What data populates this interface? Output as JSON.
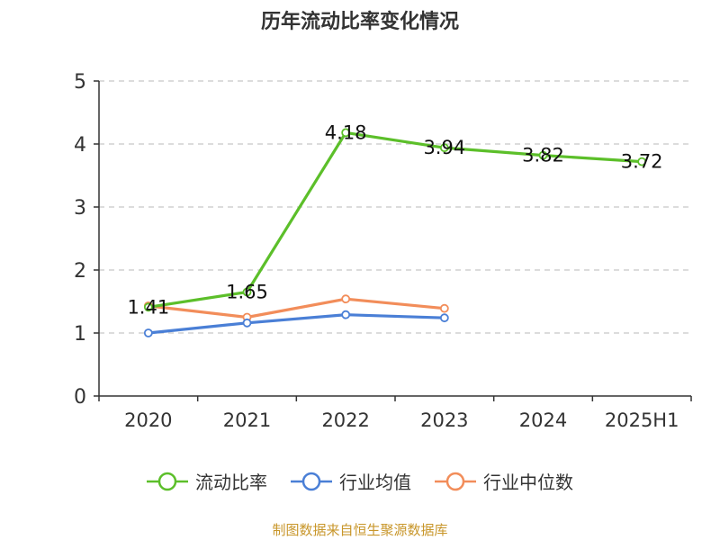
{
  "chart_data": {
    "type": "line",
    "title": "历年流动比率变化情况",
    "categories": [
      "2020",
      "2021",
      "2022",
      "2023",
      "2024",
      "2025H1"
    ],
    "ylim": [
      0,
      5
    ],
    "yticks": [
      "0",
      "1",
      "2",
      "3",
      "4",
      "5"
    ],
    "grid": true,
    "legend_position": "bottom",
    "series": [
      {
        "name": "流动比率",
        "color": "#5cbf2a",
        "values": [
          1.41,
          1.65,
          4.18,
          3.94,
          3.82,
          3.72
        ],
        "labels": [
          "1.41",
          "1.65",
          "4.18",
          "3.94",
          "3.82",
          "3.72"
        ]
      },
      {
        "name": "行业均值",
        "color": "#4a7fd6",
        "values": [
          1.0,
          1.16,
          1.29,
          1.24,
          null,
          null
        ]
      },
      {
        "name": "行业中位数",
        "color": "#f28d5a",
        "values": [
          1.43,
          1.25,
          1.54,
          1.39,
          null,
          null
        ]
      }
    ]
  },
  "footer": {
    "source": "制图数据来自恒生聚源数据库"
  }
}
